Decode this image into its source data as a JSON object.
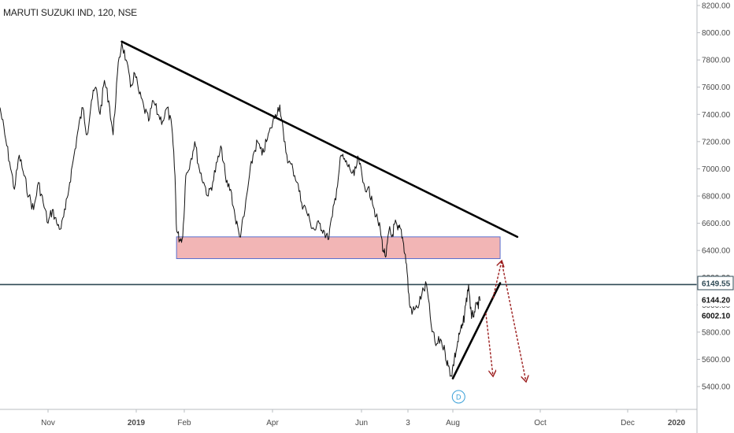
{
  "chart_title": "MARUTI SUZUKI IND, 120, NSE",
  "colors": {
    "price_line": "#111111",
    "trendline": "#000000",
    "support_zone_fill": "#f0a8a8",
    "support_zone_border": "#5a6fcf",
    "horizontal_line": "#2f4a55",
    "arrow": "#9b1c1c",
    "event_marker": "#3aa0d8",
    "axis_text": "#4a4a4a"
  },
  "price_labels": [
    {
      "text": "6149.55",
      "value": 6149.55,
      "bg": "#ffffff",
      "fg": "#2f4a55",
      "outline": "#2f4a55"
    },
    {
      "text": "6144.20",
      "value": 6144.2,
      "bg": "#ffffff",
      "fg": "#111111",
      "outline": ""
    },
    {
      "text": "6002.10",
      "value": 6002.1,
      "bg": "#ffffff",
      "fg": "#111111",
      "outline": ""
    }
  ],
  "event_marker": {
    "letter": "D"
  },
  "chart_data": {
    "type": "line",
    "title": "MARUTI SUZUKI IND, 120, NSE",
    "ylim": [
      5250,
      8250
    ],
    "y_ticks": [
      "8200.00",
      "8000.00",
      "7800.00",
      "7600.00",
      "7400.00",
      "7200.00",
      "7000.00",
      "6800.00",
      "6600.00",
      "6400.00",
      "6200.00",
      "6000.00",
      "5800.00",
      "5600.00",
      "5400.00"
    ],
    "x_ticks": [
      {
        "label": "Nov",
        "date": "2018-11-01",
        "bold": false
      },
      {
        "label": "2019",
        "date": "2019-01-01",
        "bold": true
      },
      {
        "label": "Feb",
        "date": "2019-02-01",
        "bold": false
      },
      {
        "label": "Apr",
        "date": "2019-04-01",
        "bold": false
      },
      {
        "label": "Jun",
        "date": "2019-06-01",
        "bold": false
      },
      {
        "label": "3",
        "date": "2019-07-03",
        "bold": false
      },
      {
        "label": "Aug",
        "date": "2019-08-01",
        "bold": false
      },
      {
        "label": "Oct",
        "date": "2019-10-01",
        "bold": false
      },
      {
        "label": "Dec",
        "date": "2019-12-01",
        "bold": false
      },
      {
        "label": "2020",
        "date": "2020-01-01",
        "bold": true
      }
    ],
    "xlim": [
      "2018-10-02",
      "2020-01-13"
    ],
    "series": [
      {
        "points": [
          [
            "2018-10-02",
            7450
          ],
          [
            "2018-10-05",
            7250
          ],
          [
            "2018-10-08",
            7050
          ],
          [
            "2018-10-11",
            6850
          ],
          [
            "2018-10-14",
            7100
          ],
          [
            "2018-10-17",
            6950
          ],
          [
            "2018-10-20",
            6800
          ],
          [
            "2018-10-23",
            6700
          ],
          [
            "2018-10-26",
            6900
          ],
          [
            "2018-10-29",
            6750
          ],
          [
            "2018-11-01",
            6600
          ],
          [
            "2018-11-04",
            6700
          ],
          [
            "2018-11-07",
            6600
          ],
          [
            "2018-11-10",
            6560
          ],
          [
            "2018-11-13",
            6700
          ],
          [
            "2018-11-16",
            6900
          ],
          [
            "2018-11-19",
            7100
          ],
          [
            "2018-11-22",
            7300
          ],
          [
            "2018-11-25",
            7450
          ],
          [
            "2018-11-28",
            7250
          ],
          [
            "2018-12-01",
            7500
          ],
          [
            "2018-12-04",
            7600
          ],
          [
            "2018-12-07",
            7400
          ],
          [
            "2018-12-10",
            7650
          ],
          [
            "2018-12-13",
            7500
          ],
          [
            "2018-12-16",
            7250
          ],
          [
            "2018-12-19",
            7700
          ],
          [
            "2018-12-22",
            7930
          ],
          [
            "2018-12-25",
            7800
          ],
          [
            "2018-12-28",
            7600
          ],
          [
            "2018-12-31",
            7700
          ],
          [
            "2019-01-03",
            7550
          ],
          [
            "2019-01-06",
            7450
          ],
          [
            "2019-01-09",
            7350
          ],
          [
            "2019-01-12",
            7500
          ],
          [
            "2019-01-15",
            7400
          ],
          [
            "2019-01-18",
            7350
          ],
          [
            "2019-01-21",
            7450
          ],
          [
            "2019-01-24",
            7300
          ],
          [
            "2019-01-26",
            6950
          ],
          [
            "2019-01-27",
            6550
          ],
          [
            "2019-01-29",
            6480
          ],
          [
            "2019-01-31",
            6500
          ],
          [
            "2019-02-02",
            6950
          ],
          [
            "2019-02-05",
            7050
          ],
          [
            "2019-02-08",
            7200
          ],
          [
            "2019-02-11",
            7000
          ],
          [
            "2019-02-14",
            6900
          ],
          [
            "2019-02-17",
            6800
          ],
          [
            "2019-02-20",
            6900
          ],
          [
            "2019-02-23",
            7050
          ],
          [
            "2019-02-26",
            7150
          ],
          [
            "2019-03-01",
            6900
          ],
          [
            "2019-03-04",
            6850
          ],
          [
            "2019-03-07",
            6650
          ],
          [
            "2019-03-10",
            6500
          ],
          [
            "2019-03-13",
            6650
          ],
          [
            "2019-03-16",
            6900
          ],
          [
            "2019-03-19",
            7100
          ],
          [
            "2019-03-22",
            7200
          ],
          [
            "2019-03-25",
            7100
          ],
          [
            "2019-03-28",
            7200
          ],
          [
            "2019-03-31",
            7300
          ],
          [
            "2019-04-03",
            7400
          ],
          [
            "2019-04-06",
            7470
          ],
          [
            "2019-04-09",
            7200
          ],
          [
            "2019-04-12",
            7050
          ],
          [
            "2019-04-15",
            7000
          ],
          [
            "2019-04-18",
            6900
          ],
          [
            "2019-04-21",
            6750
          ],
          [
            "2019-04-24",
            6700
          ],
          [
            "2019-04-27",
            6600
          ],
          [
            "2019-04-30",
            6550
          ],
          [
            "2019-05-03",
            6600
          ],
          [
            "2019-05-06",
            6550
          ],
          [
            "2019-05-09",
            6480
          ],
          [
            "2019-05-12",
            6650
          ],
          [
            "2019-05-15",
            6850
          ],
          [
            "2019-05-18",
            7100
          ],
          [
            "2019-05-21",
            7050
          ],
          [
            "2019-05-24",
            7000
          ],
          [
            "2019-05-27",
            6950
          ],
          [
            "2019-05-30",
            7080
          ],
          [
            "2019-06-02",
            6900
          ],
          [
            "2019-06-05",
            6850
          ],
          [
            "2019-06-08",
            6800
          ],
          [
            "2019-06-11",
            6650
          ],
          [
            "2019-06-14",
            6550
          ],
          [
            "2019-06-16",
            6400
          ],
          [
            "2019-06-18",
            6360
          ],
          [
            "2019-06-20",
            6550
          ],
          [
            "2019-06-22",
            6500
          ],
          [
            "2019-06-24",
            6600
          ],
          [
            "2019-06-26",
            6550
          ],
          [
            "2019-06-28",
            6560
          ],
          [
            "2019-06-30",
            6450
          ],
          [
            "2019-07-02",
            6300
          ],
          [
            "2019-07-04",
            6000
          ],
          [
            "2019-07-06",
            5950
          ],
          [
            "2019-07-09",
            5980
          ],
          [
            "2019-07-12",
            6080
          ],
          [
            "2019-07-15",
            6150
          ],
          [
            "2019-07-18",
            5850
          ],
          [
            "2019-07-21",
            5700
          ],
          [
            "2019-07-24",
            5750
          ],
          [
            "2019-07-27",
            5650
          ],
          [
            "2019-07-29",
            5550
          ],
          [
            "2019-07-31",
            5480
          ],
          [
            "2019-08-02",
            5600
          ],
          [
            "2019-08-04",
            5700
          ],
          [
            "2019-08-06",
            5800
          ],
          [
            "2019-08-08",
            5850
          ],
          [
            "2019-08-10",
            6000
          ],
          [
            "2019-08-12",
            6150
          ],
          [
            "2019-08-14",
            5900
          ],
          [
            "2019-08-16",
            5950
          ],
          [
            "2019-08-18",
            6000
          ],
          [
            "2019-08-20",
            6030
          ]
        ]
      }
    ],
    "trendlines": [
      {
        "from": [
          "2018-12-22",
          7935
        ],
        "to": [
          "2019-09-15",
          6500
        ]
      },
      {
        "from": [
          "2019-08-01",
          5460
        ],
        "to": [
          "2019-09-03",
          6160
        ]
      }
    ],
    "horizontal_line": {
      "y": 6149.55
    },
    "zones": [
      {
        "x_from": "2019-01-27",
        "x_to": "2019-09-03",
        "y_from": 6340,
        "y_to": 6500
      }
    ],
    "arrows": [
      {
        "from": [
          "2019-08-24",
          5940
        ],
        "to": [
          "2019-08-29",
          5480
        ]
      },
      {
        "from": [
          "2019-08-29",
          6050
        ],
        "to": [
          "2019-09-04",
          6320
        ]
      },
      {
        "from": [
          "2019-09-04",
          6320
        ],
        "to": [
          "2019-09-21",
          5440
        ]
      }
    ],
    "event_marker_date": "2019-08-05"
  }
}
